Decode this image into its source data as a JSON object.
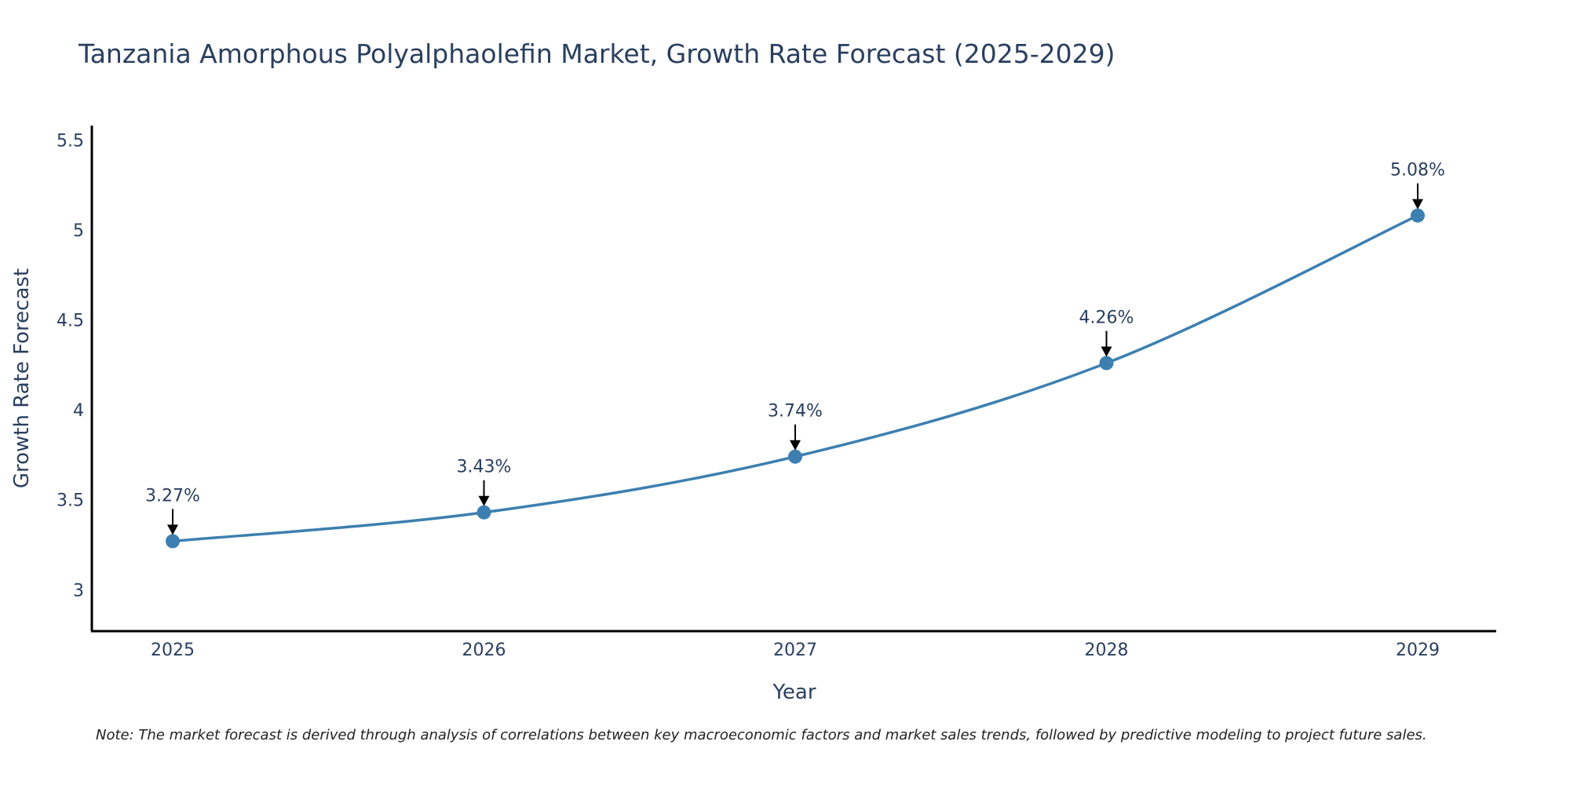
{
  "chart_data": {
    "type": "line",
    "title": "Tanzania Amorphous Polyalphaolefin Market, Growth Rate Forecast (2025-2029)",
    "xlabel": "Year",
    "ylabel": "Growth Rate Forecast",
    "categories": [
      "2025",
      "2026",
      "2027",
      "2028",
      "2029"
    ],
    "series": [
      {
        "name": "Growth Rate Forecast",
        "values": [
          3.27,
          3.43,
          3.74,
          4.26,
          5.08
        ],
        "labels": [
          "3.27%",
          "3.43%",
          "3.74%",
          "4.26%",
          "5.08%"
        ]
      }
    ],
    "ylim": [
      2.77,
      5.58
    ],
    "yticks": [
      3,
      3.5,
      4,
      4.5,
      5,
      5.5
    ],
    "ytick_labels": [
      "3",
      "3.5",
      "4",
      "4.5",
      "5",
      "5.5"
    ],
    "grid": false,
    "line_color": "#3d7fb0",
    "note": "Note: The market forecast is derived through analysis of correlations between key macroeconomic factors and market sales trends, followed by predictive modeling to project future sales."
  }
}
